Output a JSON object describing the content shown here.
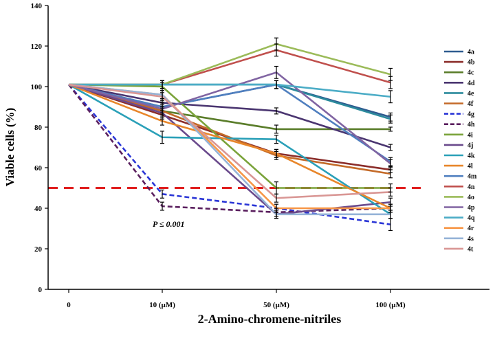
{
  "chart_data": {
    "type": "line",
    "title": "",
    "xlabel": "2-Amino-chromene-nitriles",
    "ylabel": "Viable cells (%)",
    "categories": [
      "0",
      "10 (µM)",
      "50 (µM)",
      "100 (µM)"
    ],
    "ylim": [
      0,
      140
    ],
    "y_ticks": [
      0,
      20,
      40,
      60,
      80,
      100,
      120,
      140
    ],
    "grid": false,
    "legend_position": "right",
    "annotation": "P ≤ 0.001",
    "threshold": {
      "value": 50,
      "color": "#e02020",
      "style": "dashed"
    },
    "series": [
      {
        "name": "4a",
        "color": "#2e5b8f",
        "dashed": false,
        "values": [
          101,
          90,
          101,
          85
        ],
        "errors": [
          0,
          2,
          2,
          2
        ]
      },
      {
        "name": "4b",
        "color": "#8b2d2a",
        "dashed": false,
        "values": [
          101,
          86,
          67,
          59
        ],
        "errors": [
          0,
          2,
          2,
          1.5
        ]
      },
      {
        "name": "4c",
        "color": "#5a7d2a",
        "dashed": false,
        "values": [
          101,
          88,
          79,
          79
        ],
        "errors": [
          0,
          2,
          2,
          1
        ]
      },
      {
        "name": "4d",
        "color": "#4a3570",
        "dashed": false,
        "values": [
          101,
          92,
          88,
          70
        ],
        "errors": [
          0,
          2,
          1.5,
          1.5
        ]
      },
      {
        "name": "4e",
        "color": "#2b8a9c",
        "dashed": false,
        "values": [
          101,
          101,
          101,
          84
        ],
        "errors": [
          0,
          2,
          2,
          2
        ]
      },
      {
        "name": "4f",
        "color": "#c46a28",
        "dashed": false,
        "values": [
          101,
          88,
          66,
          57
        ],
        "errors": [
          0,
          2,
          2,
          2
        ]
      },
      {
        "name": "4g",
        "color": "#2a35d6",
        "dashed": true,
        "values": [
          101,
          47,
          40,
          32
        ],
        "errors": [
          0,
          2,
          2,
          3
        ]
      },
      {
        "name": "4h",
        "color": "#5a1f5e",
        "dashed": true,
        "values": [
          101,
          41,
          38,
          40
        ],
        "errors": [
          0,
          2,
          2,
          2
        ]
      },
      {
        "name": "4i",
        "color": "#7aa33a",
        "dashed": false,
        "values": [
          101,
          100,
          50,
          50
        ],
        "errors": [
          0,
          2,
          3,
          2
        ]
      },
      {
        "name": "4j",
        "color": "#6a4a8c",
        "dashed": false,
        "values": [
          101,
          87,
          37,
          43
        ],
        "errors": [
          0,
          2,
          2,
          2
        ]
      },
      {
        "name": "4k",
        "color": "#2aa0b8",
        "dashed": false,
        "values": [
          101,
          75,
          74,
          37
        ],
        "errors": [
          0,
          3,
          2,
          2
        ]
      },
      {
        "name": "4l",
        "color": "#e8862a",
        "dashed": false,
        "values": [
          101,
          83,
          67,
          40
        ],
        "errors": [
          0,
          2,
          2,
          2
        ]
      },
      {
        "name": "4m",
        "color": "#4f7fbf",
        "dashed": false,
        "values": [
          101,
          90,
          101,
          63
        ],
        "errors": [
          0,
          2,
          2,
          2
        ]
      },
      {
        "name": "4n",
        "color": "#c0504d",
        "dashed": false,
        "values": [
          101,
          101,
          118,
          102
        ],
        "errors": [
          0,
          2,
          3,
          3
        ]
      },
      {
        "name": "4o",
        "color": "#9bbb59",
        "dashed": false,
        "values": [
          101,
          101,
          121,
          106
        ],
        "errors": [
          0,
          2,
          3,
          3
        ]
      },
      {
        "name": "4p",
        "color": "#8064a2",
        "dashed": false,
        "values": [
          101,
          89,
          107,
          62
        ],
        "errors": [
          0,
          2,
          3,
          2
        ]
      },
      {
        "name": "4q",
        "color": "#4bacc6",
        "dashed": false,
        "values": [
          101,
          101,
          101,
          95
        ],
        "errors": [
          0,
          2,
          2,
          3
        ]
      },
      {
        "name": "4r",
        "color": "#f79646",
        "dashed": false,
        "values": [
          101,
          96,
          40,
          40
        ],
        "errors": [
          0,
          2,
          2,
          2
        ]
      },
      {
        "name": "4s",
        "color": "#95b3d7",
        "dashed": false,
        "values": [
          101,
          96,
          37,
          37
        ],
        "errors": [
          0,
          2,
          2,
          2
        ]
      },
      {
        "name": "4t",
        "color": "#d99694",
        "dashed": false,
        "values": [
          101,
          95,
          45,
          48
        ],
        "errors": [
          0,
          2,
          2,
          2
        ]
      }
    ]
  }
}
